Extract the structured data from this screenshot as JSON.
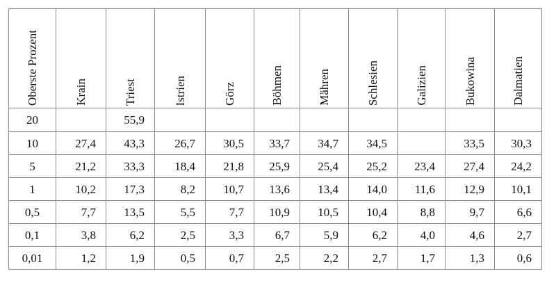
{
  "table": {
    "corner_header": "Oberste Prozent",
    "columns": [
      "Krain",
      "Triest",
      "Istrien",
      "Görz",
      "Böhmen",
      "Mähren",
      "Schlesien",
      "Galizien",
      "Bukowina",
      "Dalmatien"
    ],
    "rows": [
      {
        "pct": "20",
        "values": [
          "",
          "55,9",
          "",
          "",
          "",
          "",
          "",
          "",
          "",
          ""
        ]
      },
      {
        "pct": "10",
        "values": [
          "27,4",
          "43,3",
          "26,7",
          "30,5",
          "33,7",
          "34,7",
          "34,5",
          "",
          "33,5",
          "30,3"
        ]
      },
      {
        "pct": "5",
        "values": [
          "21,2",
          "33,3",
          "18,4",
          "21,8",
          "25,9",
          "25,4",
          "25,2",
          "23,4",
          "27,4",
          "24,2"
        ]
      },
      {
        "pct": "1",
        "values": [
          "10,2",
          "17,3",
          "8,2",
          "10,7",
          "13,6",
          "13,4",
          "14,0",
          "11,6",
          "12,9",
          "10,1"
        ]
      },
      {
        "pct": "0,5",
        "values": [
          "7,7",
          "13,5",
          "5,5",
          "7,7",
          "10,9",
          "10,5",
          "10,4",
          "8,8",
          "9,7",
          "6,6"
        ]
      },
      {
        "pct": "0,1",
        "values": [
          "3,8",
          "6,2",
          "2,5",
          "3,3",
          "6,7",
          "5,9",
          "6,2",
          "4,0",
          "4,6",
          "2,7"
        ]
      },
      {
        "pct": "0,01",
        "values": [
          "1,2",
          "1,9",
          "0,5",
          "0,7",
          "2,5",
          "2,2",
          "2,7",
          "1,7",
          "1,3",
          "0,6"
        ]
      }
    ]
  }
}
